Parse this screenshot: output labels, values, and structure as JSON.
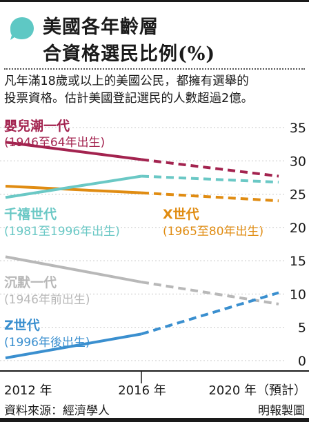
{
  "header": {
    "title_line1": "美國各年齡層",
    "title_line2": "合資格選民比例(%)",
    "description_line1": "凡年滿18歲或以上的美國公民，都擁有選舉的",
    "description_line2": "投票資格。估計美國登記選民的人數超過2億。"
  },
  "footer": {
    "source": "資料來源：經濟學人",
    "credit": "明報製圖"
  },
  "colors": {
    "accent": "#5ec8c4",
    "boomers": "#a3234f",
    "millennials": "#6ac8c5",
    "genx": "#e08c12",
    "silent": "#b8b8b8",
    "genz": "#3a8fcf"
  },
  "chart_data": {
    "type": "line",
    "x": [
      "2012 年",
      "2016 年",
      "2020 年（預計）"
    ],
    "x_ticks": [
      "2012 年",
      "2016 年",
      "2020 年（預計）"
    ],
    "y_ticks": [
      "0",
      "5",
      "10",
      "15",
      "20",
      "25",
      "30",
      "35"
    ],
    "ylim": [
      0,
      35
    ],
    "projection_style": "dashed from 2016 to 2020",
    "series": [
      {
        "key": "boomers",
        "name": "嬰兒潮一代",
        "sub": "(1946至64年出生)",
        "color": "#a3234f",
        "values": [
          32.8,
          30.2,
          27.7
        ]
      },
      {
        "key": "millennials",
        "name": "千禧世代",
        "sub": "(1981至1996年出生)",
        "color": "#6ac8c5",
        "values": [
          24.5,
          27.7,
          26.8
        ]
      },
      {
        "key": "genx",
        "name": "X世代",
        "sub": "(1965至80年出生)",
        "color": "#e08c12",
        "values": [
          26.2,
          25.2,
          24.0
        ]
      },
      {
        "key": "silent",
        "name": "沉默一代",
        "sub": "(1946年前出生)",
        "color": "#b8b8b8",
        "values": [
          15.6,
          11.8,
          8.5
        ]
      },
      {
        "key": "genz",
        "name": "Z世代",
        "sub": "(1996年後出生)",
        "color": "#3a8fcf",
        "values": [
          0.4,
          4.0,
          10.2
        ]
      }
    ]
  }
}
